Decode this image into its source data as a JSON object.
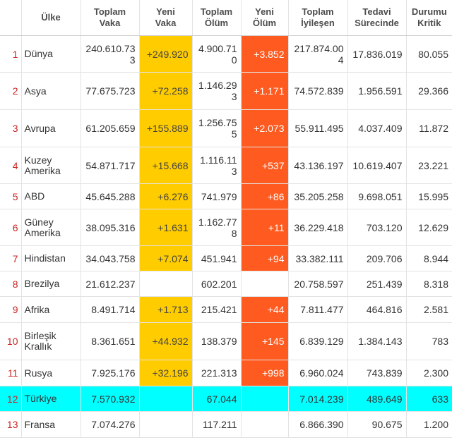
{
  "headers": {
    "country": "Ülke",
    "total_cases": [
      "Toplam",
      "Vaka"
    ],
    "new_cases": [
      "Yeni",
      "Vaka"
    ],
    "total_deaths": [
      "Toplam",
      "Ölüm"
    ],
    "new_deaths": [
      "Yeni",
      "Ölüm"
    ],
    "total_recovered": [
      "Toplam",
      "İyileşen"
    ],
    "active": [
      "Tedavi",
      "Sürecinde"
    ],
    "critical": [
      "Durumu",
      "Kritik"
    ]
  },
  "colors": {
    "new_cases_bg": "#ffcc00",
    "new_deaths_bg": "#ff5a1f",
    "highlight_row_bg": "#00ffff",
    "rank_text": "#cc2222"
  },
  "rows": [
    {
      "rank": "1",
      "country": "Dünya",
      "total_cases": "240.610.733",
      "new_cases": "+249.920",
      "total_deaths": "4.900.710",
      "new_deaths": "+3.852",
      "total_recovered": "217.874.004",
      "active": "17.836.019",
      "critical": "80.055"
    },
    {
      "rank": "2",
      "country": "Asya",
      "total_cases": "77.675.723",
      "new_cases": "+72.258",
      "total_deaths": "1.146.293",
      "new_deaths": "+1.171",
      "total_recovered": "74.572.839",
      "active": "1.956.591",
      "critical": "29.366"
    },
    {
      "rank": "3",
      "country": "Avrupa",
      "total_cases": "61.205.659",
      "new_cases": "+155.889",
      "total_deaths": "1.256.755",
      "new_deaths": "+2.073",
      "total_recovered": "55.911.495",
      "active": "4.037.409",
      "critical": "11.872"
    },
    {
      "rank": "4",
      "country": "Kuzey Amerika",
      "total_cases": "54.871.717",
      "new_cases": "+15.668",
      "total_deaths": "1.116.113",
      "new_deaths": "+537",
      "total_recovered": "43.136.197",
      "active": "10.619.407",
      "critical": "23.221"
    },
    {
      "rank": "5",
      "country": "ABD",
      "total_cases": "45.645.288",
      "new_cases": "+6.276",
      "total_deaths": "741.979",
      "new_deaths": "+86",
      "total_recovered": "35.205.258",
      "active": "9.698.051",
      "critical": "15.995"
    },
    {
      "rank": "6",
      "country": "Güney Amerika",
      "total_cases": "38.095.316",
      "new_cases": "+1.631",
      "total_deaths": "1.162.778",
      "new_deaths": "+11",
      "total_recovered": "36.229.418",
      "active": "703.120",
      "critical": "12.629"
    },
    {
      "rank": "7",
      "country": "Hindistan",
      "total_cases": "34.043.758",
      "new_cases": "+7.074",
      "total_deaths": "451.941",
      "new_deaths": "+94",
      "total_recovered": "33.382.111",
      "active": "209.706",
      "critical": "8.944"
    },
    {
      "rank": "8",
      "country": "Brezilya",
      "total_cases": "21.612.237",
      "new_cases": "",
      "total_deaths": "602.201",
      "new_deaths": "",
      "total_recovered": "20.758.597",
      "active": "251.439",
      "critical": "8.318"
    },
    {
      "rank": "9",
      "country": "Afrika",
      "total_cases": "8.491.714",
      "new_cases": "+1.713",
      "total_deaths": "215.421",
      "new_deaths": "+44",
      "total_recovered": "7.811.477",
      "active": "464.816",
      "critical": "2.581"
    },
    {
      "rank": "10",
      "country": "Birleşik Krallık",
      "total_cases": "8.361.651",
      "new_cases": "+44.932",
      "total_deaths": "138.379",
      "new_deaths": "+145",
      "total_recovered": "6.839.129",
      "active": "1.384.143",
      "critical": "783"
    },
    {
      "rank": "11",
      "country": "Rusya",
      "total_cases": "7.925.176",
      "new_cases": "+32.196",
      "total_deaths": "221.313",
      "new_deaths": "+998",
      "total_recovered": "6.960.024",
      "active": "743.839",
      "critical": "2.300"
    },
    {
      "rank": "12",
      "country": "Türkiye",
      "total_cases": "7.570.932",
      "new_cases": "",
      "total_deaths": "67.044",
      "new_deaths": "",
      "total_recovered": "7.014.239",
      "active": "489.649",
      "critical": "633",
      "highlight": true
    },
    {
      "rank": "13",
      "country": "Fransa",
      "total_cases": "7.074.276",
      "new_cases": "",
      "total_deaths": "117.211",
      "new_deaths": "",
      "total_recovered": "6.866.390",
      "active": "90.675",
      "critical": "1.200"
    }
  ]
}
